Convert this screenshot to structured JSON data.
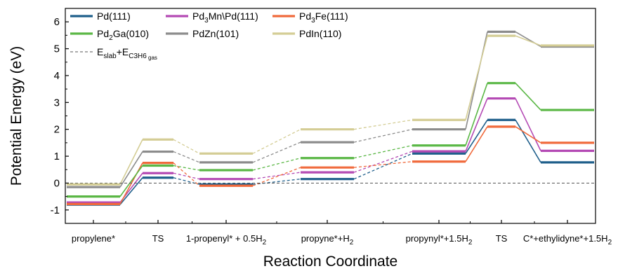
{
  "chart_data": {
    "type": "line",
    "xlabel": "Reaction Coordinate",
    "ylabel": "Potential Energy (eV)",
    "ylim": [
      -1.5,
      6.5
    ],
    "yticks": [
      -1,
      0,
      1,
      2,
      3,
      4,
      5,
      6
    ],
    "categories": [
      {
        "main": "propylene*",
        "sub": ""
      },
      {
        "main": "TS",
        "sub": ""
      },
      {
        "main": "1-propenyl* + 0.5H",
        "sub": "2"
      },
      {
        "main": "propyne*+H",
        "sub": "2"
      },
      {
        "main": "propynyl*+1.5H",
        "sub": "2"
      },
      {
        "main": "TS",
        "sub": ""
      },
      {
        "main": "C*+ethylidyne*+1.5H",
        "sub": "2"
      }
    ],
    "series": [
      {
        "name": "Pd(111)",
        "color": "#1f5f8b",
        "values": [
          -0.8,
          0.2,
          -0.05,
          0.15,
          1.1,
          2.35,
          0.77
        ]
      },
      {
        "name": "Pd3Mn\\Pd(111)",
        "color": "#b44ab4",
        "values": [
          -0.72,
          0.37,
          0.15,
          0.4,
          1.18,
          3.15,
          1.2
        ]
      },
      {
        "name": "Pd3Fe(111)",
        "color": "#f06a3c",
        "values": [
          -0.78,
          0.75,
          -0.1,
          0.58,
          0.8,
          2.1,
          1.5
        ]
      },
      {
        "name": "Pd2Ga(010)",
        "color": "#5ab745",
        "values": [
          -0.5,
          0.65,
          0.48,
          0.93,
          1.4,
          3.72,
          2.72
        ]
      },
      {
        "name": "PdZn(101)",
        "color": "#8c8c8c",
        "values": [
          -0.15,
          1.17,
          0.77,
          1.52,
          2.0,
          5.63,
          5.08
        ]
      },
      {
        "name": "PdIn(110)",
        "color": "#d4cd95",
        "values": [
          -0.05,
          1.62,
          1.1,
          2.0,
          2.35,
          5.48,
          5.12
        ]
      }
    ],
    "reference_line": {
      "y": 0,
      "style": "dashed",
      "color": "#555555"
    },
    "legend": {
      "placement": "top-left",
      "entries": [
        {
          "series": 0,
          "main": "Pd(111)"
        },
        {
          "series": 1,
          "main": "Pd",
          "sub1": "3",
          "main2": "Mn\\Pd(111)"
        },
        {
          "series": 2,
          "main": "Pd",
          "sub1": "3",
          "main2": "Fe(111)"
        },
        {
          "series": 3,
          "main": "Pd",
          "sub1": "2",
          "main2": "Ga(010)"
        },
        {
          "series": 4,
          "main": "PdZn(101)"
        },
        {
          "series": 5,
          "main": "PdIn(110)"
        }
      ],
      "reference_entry": {
        "main": "E",
        "sub_slab": "slab",
        "plus": "+E",
        "sub_mol": "C",
        "sub_h": "3",
        "sub_h2": "H",
        "sub_6": "6",
        "sub_gas": " gas"
      }
    },
    "grid": false
  }
}
